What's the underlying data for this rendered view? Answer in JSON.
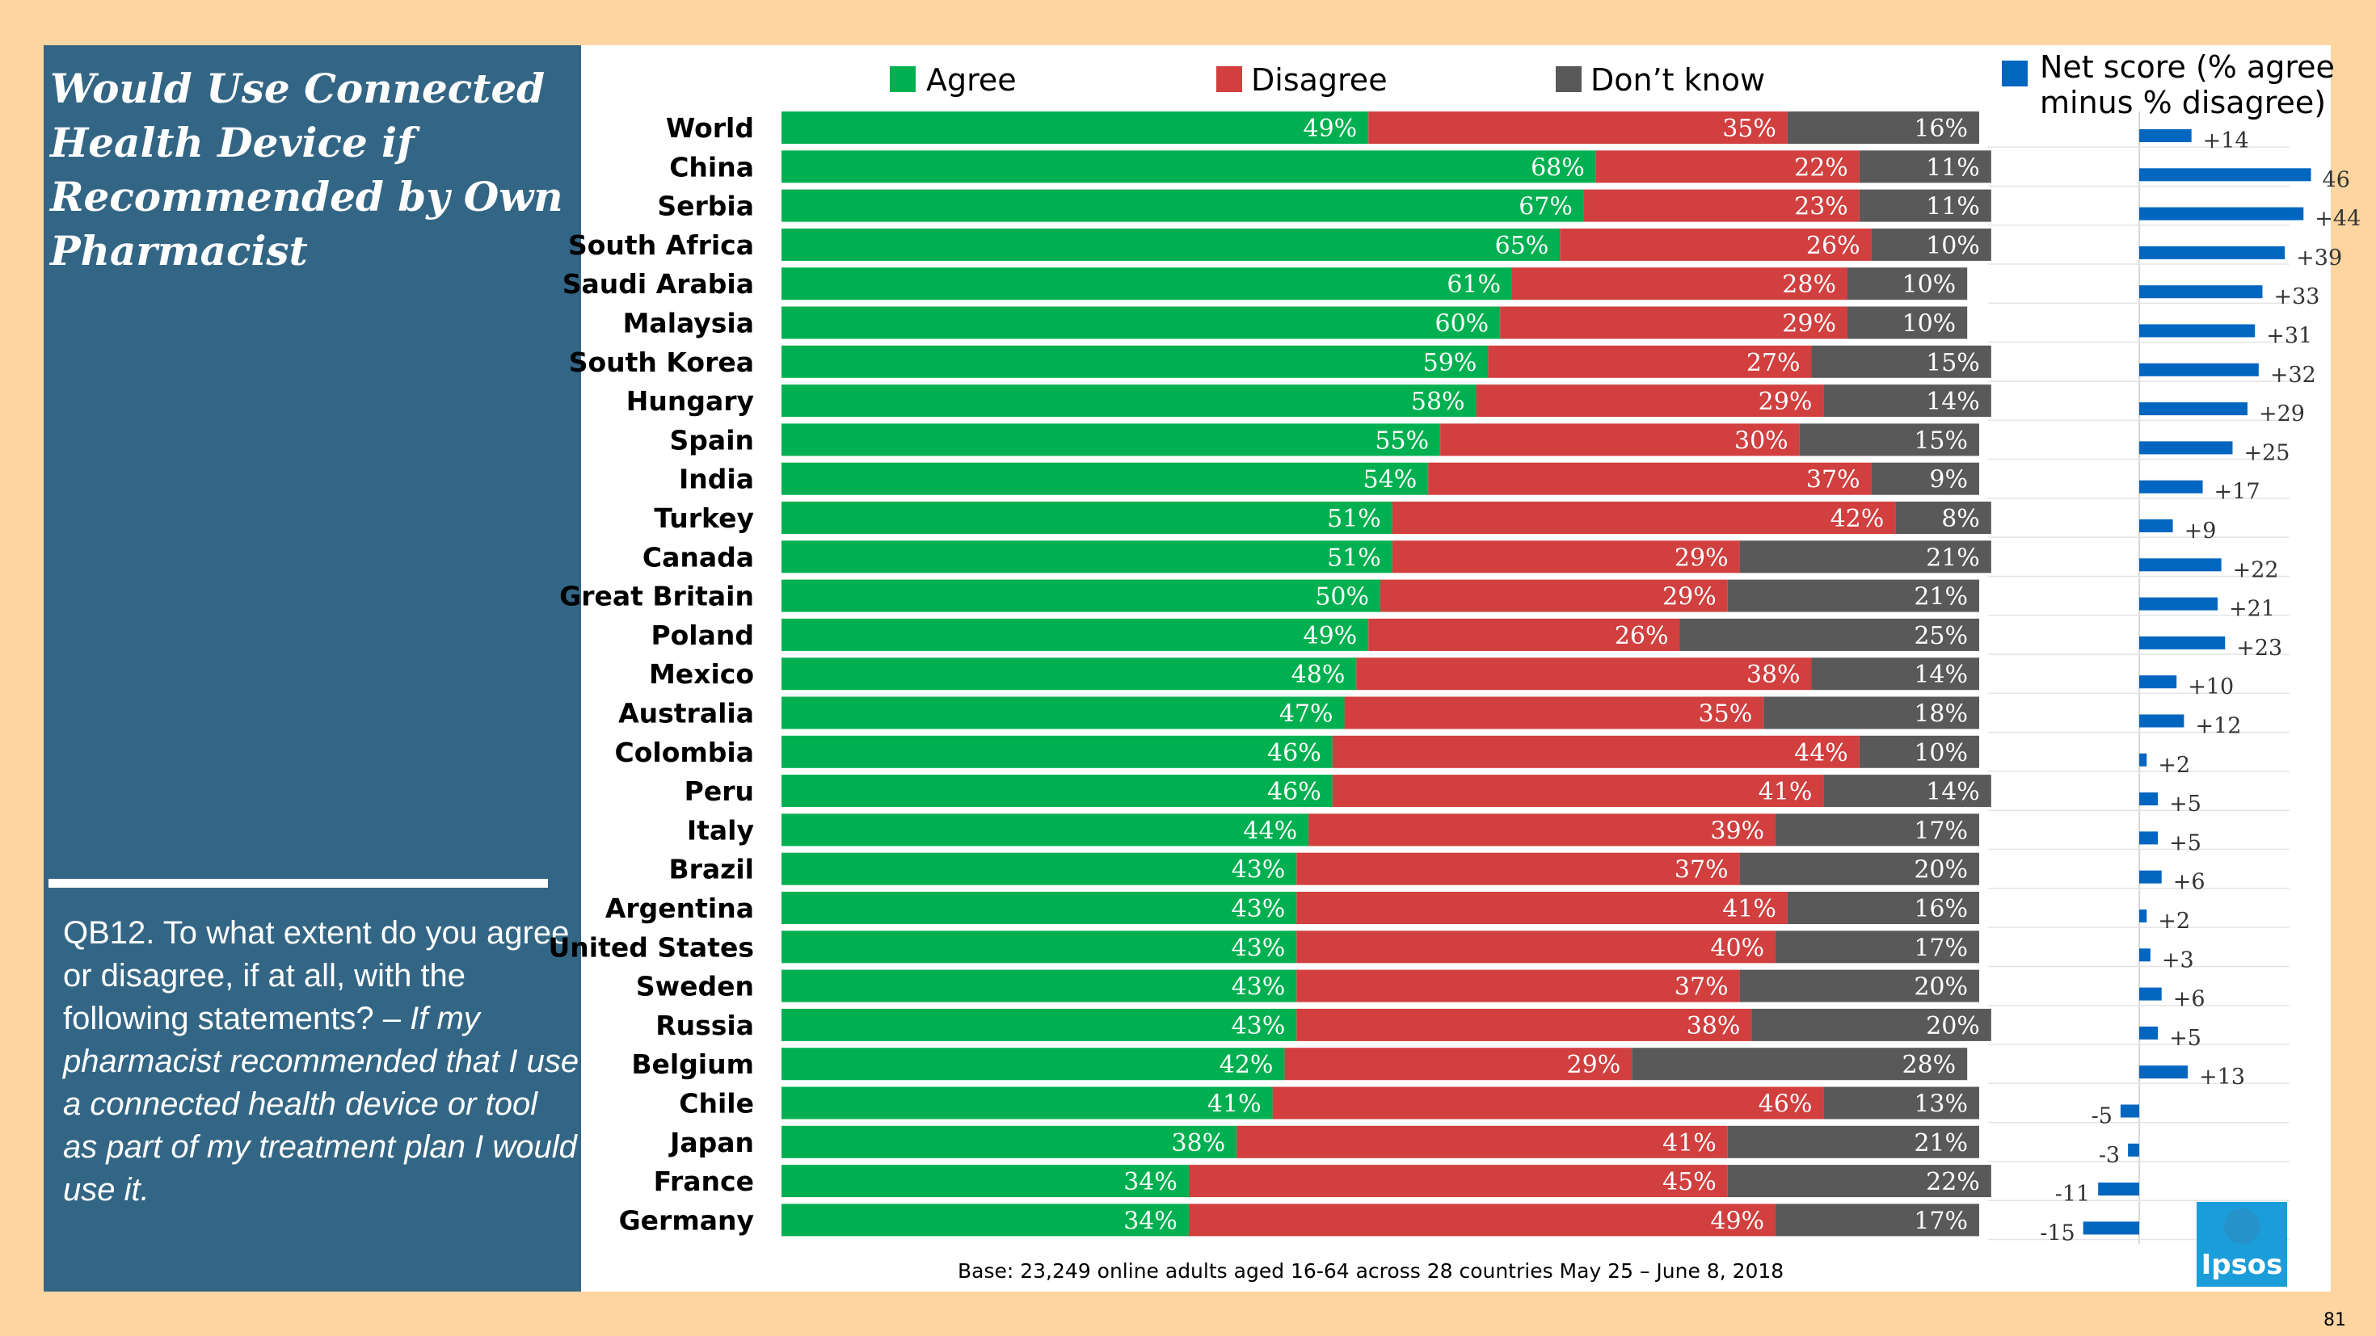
{
  "panel": {
    "title": "Would Use Connected\nHealth Device  if\nRecommended by Own\nPharmacist",
    "question_plain": "QB12. To what extent do you agree or disagree, if at all, with the following statements? – ",
    "question_italic": "If my pharmacist recommended that I use a connected health device or tool as part of my treatment plan I would use it."
  },
  "footer": {
    "base_note": "Base: 23,249 online adults aged 16-64 across 28 countries  May 25 – June 8, 2018",
    "logo_text": "Ipsos",
    "page_number": "81"
  },
  "colors": {
    "agree": "#00B050",
    "disagree": "#D13F3F",
    "dont_know": "#595959",
    "net": "#0066BF",
    "sidebar": "#336685",
    "frame": "#FDD5A0"
  },
  "chart_data": [
    {
      "type": "bar",
      "orientation": "horizontal",
      "stacked": true,
      "percent_suffix": "%",
      "legend_position": "top",
      "categories": [
        "World",
        "China",
        "Serbia",
        "South Africa",
        "Saudi Arabia",
        "Malaysia",
        "South Korea",
        "Hungary",
        "Spain",
        "India",
        "Turkey",
        "Canada",
        "Great Britain",
        "Poland",
        "Mexico",
        "Australia",
        "Colombia",
        "Peru",
        "Italy",
        "Brazil",
        "Argentina",
        "United States",
        "Sweden",
        "Russia",
        "Belgium",
        "Chile",
        "Japan",
        "France",
        "Germany"
      ],
      "series": [
        {
          "name": "Agree",
          "color": "#00B050",
          "values": [
            49,
            68,
            67,
            65,
            61,
            60,
            59,
            58,
            55,
            54,
            51,
            51,
            50,
            49,
            48,
            47,
            46,
            46,
            44,
            43,
            43,
            43,
            43,
            43,
            42,
            41,
            38,
            34,
            34
          ]
        },
        {
          "name": "Disagree",
          "color": "#D13F3F",
          "values": [
            35,
            22,
            23,
            26,
            28,
            29,
            27,
            29,
            30,
            37,
            42,
            29,
            29,
            26,
            38,
            35,
            44,
            41,
            39,
            37,
            41,
            40,
            37,
            38,
            29,
            46,
            41,
            45,
            49
          ]
        },
        {
          "name": "Don’t know",
          "color": "#595959",
          "values": [
            16,
            11,
            11,
            10,
            10,
            10,
            15,
            14,
            15,
            9,
            8,
            21,
            21,
            25,
            14,
            18,
            10,
            14,
            17,
            20,
            16,
            17,
            20,
            20,
            28,
            13,
            21,
            22,
            17
          ]
        }
      ]
    },
    {
      "type": "bar",
      "orientation": "horizontal",
      "title": "Net score (% agree minus % disagree)",
      "color": "#0066BF",
      "xlim": [
        -20,
        50
      ],
      "values": [
        14,
        46,
        44,
        39,
        33,
        31,
        32,
        29,
        25,
        17,
        9,
        22,
        21,
        23,
        10,
        12,
        2,
        5,
        5,
        6,
        2,
        3,
        6,
        5,
        13,
        -5,
        -3,
        -11,
        -15
      ],
      "labels": [
        "+14",
        "46",
        "+44",
        "+39",
        "+33",
        "+31",
        "+32",
        "+29",
        "+25",
        "+17",
        "+9",
        "+22",
        "+21",
        "+23",
        "+10",
        "+12",
        "+2",
        "+5",
        "+5",
        "+6",
        "+2",
        "+3",
        "+6",
        "+5",
        "+13",
        "-5",
        "-3",
        "-11",
        "-15"
      ]
    }
  ]
}
